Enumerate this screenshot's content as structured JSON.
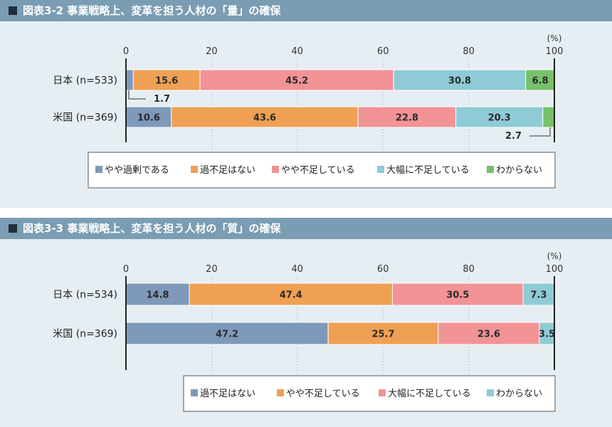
{
  "charts": [
    {
      "title": "図表3-2 事業戦略上、変革を担う人材の「量」の確保",
      "chart_data": {
        "type": "bar",
        "orientation": "horizontal",
        "stacked": true,
        "unit": "(%)",
        "xlim": [
          0,
          100
        ],
        "ticks": [
          "0",
          "20",
          "40",
          "60",
          "80",
          "100"
        ],
        "categories": [
          "日本 (n=533)",
          "米国 (n=369)"
        ],
        "series": [
          {
            "name": "やや過剰である",
            "values": [
              1.7,
              10.6
            ],
            "color": "#7e99ba"
          },
          {
            "name": "過不足はない",
            "values": [
              15.6,
              43.6
            ],
            "color": "#efa054"
          },
          {
            "name": "やや不足している",
            "values": [
              45.2,
              22.8
            ],
            "color": "#f29396"
          },
          {
            "name": "大幅に不足している",
            "values": [
              30.8,
              20.3
            ],
            "color": "#8ecbd6"
          },
          {
            "name": "わからない",
            "values": [
              6.8,
              2.7
            ],
            "color": "#78c06a"
          }
        ],
        "legend": "bottom",
        "grid": "dotted-vertical"
      }
    },
    {
      "title": "図表3-3 事業戦略上、変革を担う人材の「質」の確保",
      "chart_data": {
        "type": "bar",
        "orientation": "horizontal",
        "stacked": true,
        "unit": "(%)",
        "xlim": [
          0,
          100
        ],
        "ticks": [
          "0",
          "20",
          "40",
          "60",
          "80",
          "100"
        ],
        "categories": [
          "日本 (n=534)",
          "米国 (n=369)"
        ],
        "series": [
          {
            "name": "過不足はない",
            "values": [
              14.8,
              47.2
            ],
            "color": "#7e99ba"
          },
          {
            "name": "やや不足している",
            "values": [
              47.4,
              25.7
            ],
            "color": "#efa054"
          },
          {
            "name": "大幅に不足している",
            "values": [
              30.5,
              23.6
            ],
            "color": "#f29396"
          },
          {
            "name": "わからない",
            "values": [
              7.3,
              3.5
            ],
            "color": "#8ecbd6"
          }
        ],
        "legend": "bottom",
        "grid": "dotted-vertical"
      }
    }
  ]
}
